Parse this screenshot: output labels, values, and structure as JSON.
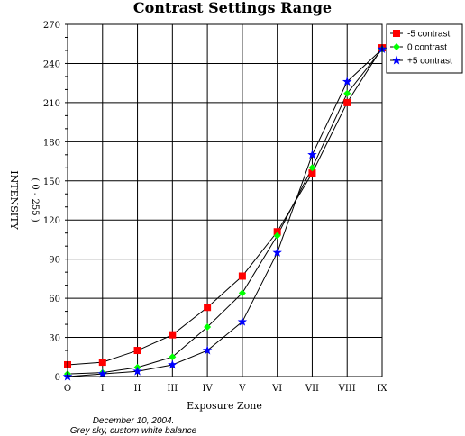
{
  "chart_data": {
    "type": "line",
    "title": "Contrast Settings Range",
    "xlabel": "Exposure Zone",
    "ylabel": "INTENSITY",
    "ylabel_sub": "( 0 - 255 )",
    "categories": [
      "O",
      "I",
      "II",
      "III",
      "IV",
      "V",
      "VI",
      "VII",
      "VIII",
      "IX"
    ],
    "ylim": [
      0,
      270
    ],
    "yticks": [
      0,
      30,
      60,
      90,
      120,
      150,
      180,
      210,
      240,
      270
    ],
    "grid": true,
    "legend_position": "top-right",
    "series": [
      {
        "name": "-5 contrast",
        "color": "#ff0000",
        "marker": "square",
        "values": [
          9,
          11,
          20,
          32,
          53,
          77,
          111,
          156,
          210,
          252
        ]
      },
      {
        "name": "0 contrast",
        "color": "#00ff00",
        "marker": "diamond",
        "values": [
          2,
          3,
          7,
          15,
          38,
          64,
          108,
          160,
          217,
          251
        ]
      },
      {
        "name": "+5 contrast",
        "color": "#0000ff",
        "marker": "star",
        "values": [
          0,
          2,
          4,
          9,
          20,
          42,
          95,
          170,
          226,
          251
        ]
      }
    ],
    "annotation": [
      "December 10, 2004.",
      "Grey sky, custom white balance"
    ]
  }
}
